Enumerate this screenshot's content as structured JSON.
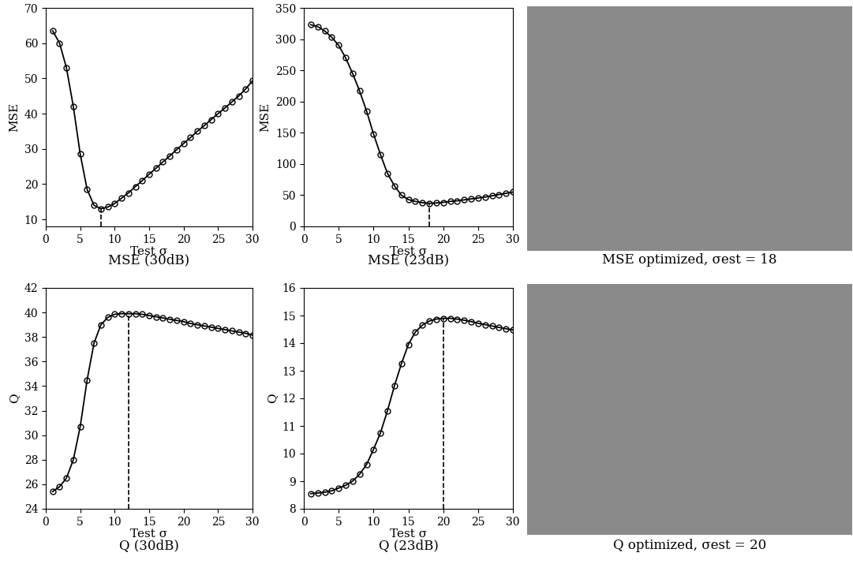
{
  "chart_data": [
    {
      "type": "line",
      "caption": "MSE (30dB)",
      "x_label": "Test σ",
      "y_label": "MSE",
      "x": [
        1,
        2,
        3,
        4,
        5,
        6,
        7,
        8,
        9,
        10,
        11,
        12,
        13,
        14,
        15,
        16,
        17,
        18,
        19,
        20,
        21,
        22,
        23,
        24,
        25,
        26,
        27,
        28,
        29,
        30
      ],
      "values": [
        63.5,
        60,
        53,
        42,
        28.5,
        18.5,
        14,
        13,
        13.5,
        14.5,
        16,
        17.5,
        19.3,
        21,
        22.8,
        24.5,
        26.3,
        28,
        29.8,
        31.5,
        33.2,
        35,
        36.6,
        38.3,
        40,
        41.6,
        43.3,
        45,
        47,
        49.3
      ],
      "optimum_x": 8,
      "color": "#000000",
      "marker": "o",
      "line_style": "solid",
      "xlim": [
        0,
        30
      ],
      "xticks": [
        0,
        5,
        10,
        15,
        20,
        25,
        30
      ],
      "ylim": [
        8,
        70
      ],
      "yticks": [
        10,
        20,
        30,
        40,
        50,
        60,
        70
      ]
    },
    {
      "type": "line",
      "caption": "MSE (23dB)",
      "x_label": "Test σ",
      "y_label": "MSE",
      "x": [
        1,
        2,
        3,
        4,
        5,
        6,
        7,
        8,
        9,
        10,
        11,
        12,
        13,
        14,
        15,
        16,
        17,
        18,
        19,
        20,
        21,
        22,
        23,
        24,
        25,
        26,
        27,
        28,
        29,
        30
      ],
      "values": [
        323,
        320,
        313,
        303,
        290,
        270,
        245,
        217,
        185,
        148,
        115,
        85,
        65,
        50,
        43,
        40,
        38,
        37,
        37.5,
        38.5,
        40,
        41,
        42.5,
        44,
        45.5,
        47,
        49,
        51,
        53,
        55
      ],
      "optimum_x": 18,
      "color": "#000000",
      "marker": "o",
      "line_style": "solid",
      "xlim": [
        0,
        30
      ],
      "xticks": [
        0,
        5,
        10,
        15,
        20,
        25,
        30
      ],
      "ylim": [
        0,
        350
      ],
      "yticks": [
        0,
        50,
        100,
        150,
        200,
        250,
        300,
        350
      ]
    },
    {
      "type": "line",
      "caption": "Q (30dB)",
      "x_label": "Test σ",
      "y_label": "Q",
      "x": [
        1,
        2,
        3,
        4,
        5,
        6,
        7,
        8,
        9,
        10,
        11,
        12,
        13,
        14,
        15,
        16,
        17,
        18,
        19,
        20,
        21,
        22,
        23,
        24,
        25,
        26,
        27,
        28,
        29,
        30
      ],
      "values": [
        25.4,
        25.8,
        26.5,
        28,
        30.7,
        34.5,
        37.5,
        39,
        39.6,
        39.85,
        39.9,
        39.9,
        39.9,
        39.85,
        39.75,
        39.65,
        39.55,
        39.45,
        39.35,
        39.25,
        39.1,
        39,
        38.9,
        38.8,
        38.7,
        38.6,
        38.5,
        38.4,
        38.3,
        38.15
      ],
      "optimum_x": 12,
      "color": "#000000",
      "marker": "o",
      "line_style": "solid",
      "xlim": [
        0,
        30
      ],
      "xticks": [
        0,
        5,
        10,
        15,
        20,
        25,
        30
      ],
      "ylim": [
        24,
        42
      ],
      "yticks": [
        24,
        26,
        28,
        30,
        32,
        34,
        36,
        38,
        40,
        42
      ]
    },
    {
      "type": "line",
      "caption": "Q (23dB)",
      "x_label": "Test σ",
      "y_label": "Q",
      "x": [
        1,
        2,
        3,
        4,
        5,
        6,
        7,
        8,
        9,
        10,
        11,
        12,
        13,
        14,
        15,
        16,
        17,
        18,
        19,
        20,
        21,
        22,
        23,
        24,
        25,
        26,
        27,
        28,
        29,
        30
      ],
      "values": [
        8.55,
        8.57,
        8.6,
        8.65,
        8.75,
        8.85,
        9.0,
        9.25,
        9.6,
        10.15,
        10.75,
        11.55,
        12.45,
        13.25,
        13.95,
        14.4,
        14.65,
        14.8,
        14.87,
        14.9,
        14.9,
        14.87,
        14.83,
        14.78,
        14.72,
        14.67,
        14.62,
        14.57,
        14.52,
        14.48
      ],
      "optimum_x": 20,
      "color": "#000000",
      "marker": "o",
      "line_style": "solid",
      "xlim": [
        0,
        30
      ],
      "xticks": [
        0,
        5,
        10,
        15,
        20,
        25,
        30
      ],
      "ylim": [
        8,
        16
      ],
      "yticks": [
        8,
        9,
        10,
        11,
        12,
        13,
        14,
        15,
        16
      ]
    }
  ],
  "images": [
    {
      "caption": "MSE optimized, σest = 18"
    },
    {
      "caption": "Q optimized, σest = 20"
    }
  ]
}
